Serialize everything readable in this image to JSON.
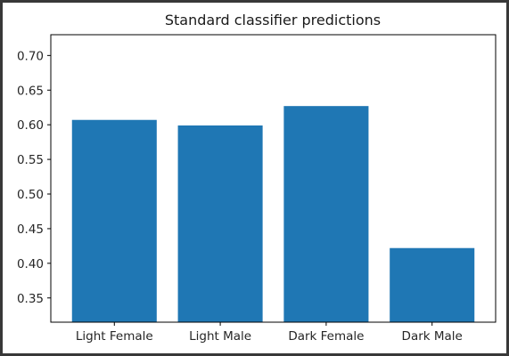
{
  "chart_data": {
    "type": "bar",
    "title": "Standard classifier predictions",
    "xlabel": "",
    "ylabel": "",
    "categories": [
      "Light Female",
      "Light Male",
      "Dark Female",
      "Dark Male"
    ],
    "values": [
      0.607,
      0.599,
      0.627,
      0.422
    ],
    "ylim": [
      0.315,
      0.73
    ],
    "yticks": [
      "0.35",
      "0.40",
      "0.45",
      "0.50",
      "0.55",
      "0.60",
      "0.65",
      "0.70"
    ],
    "bar_color": "#1f77b4",
    "grid": false,
    "legend": "none"
  }
}
